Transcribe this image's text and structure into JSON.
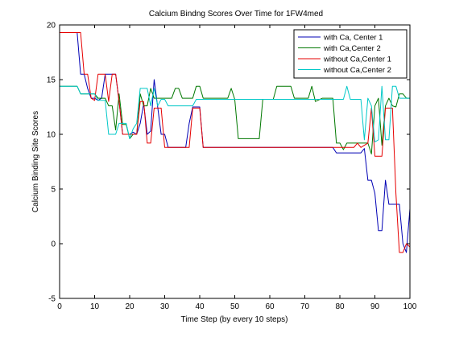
{
  "chart_data": {
    "type": "line",
    "title": "Calcium Bindng Scores Over Time for 1FW4med",
    "xlabel": "Time Step (by every 10 steps)",
    "ylabel": "Calcium Binding Site Scores",
    "xlim": [
      0,
      100
    ],
    "ylim": [
      -5,
      20
    ],
    "x_ticks": [
      "0",
      "10",
      "20",
      "30",
      "40",
      "50",
      "60",
      "70",
      "80",
      "90",
      "100"
    ],
    "y_ticks": [
      "-5",
      "0",
      "5",
      "10",
      "15",
      "20"
    ],
    "grid": false,
    "legend_position": "top-right",
    "series": [
      {
        "name": "with Ca, Center 1",
        "color": "#0000b4",
        "points": [
          [
            0,
            19.3
          ],
          [
            5,
            19.3
          ],
          [
            6,
            15.5
          ],
          [
            7,
            15.5
          ],
          [
            8,
            14.2
          ],
          [
            9,
            13.3
          ],
          [
            10,
            13.3
          ],
          [
            11,
            13.1
          ],
          [
            12,
            13.3
          ],
          [
            13,
            15.5
          ],
          [
            14,
            15.5
          ],
          [
            15,
            15.5
          ],
          [
            16,
            15.5
          ],
          [
            17,
            13.0
          ],
          [
            18,
            10.0
          ],
          [
            19,
            10.0
          ],
          [
            20,
            10.0
          ],
          [
            21,
            10.2
          ],
          [
            22,
            10.0
          ],
          [
            23,
            11.0
          ],
          [
            24,
            12.8
          ],
          [
            25,
            10.0
          ],
          [
            26,
            10.3
          ],
          [
            27,
            15.0
          ],
          [
            28,
            12.5
          ],
          [
            29,
            10.0
          ],
          [
            30,
            10.0
          ],
          [
            31,
            8.8
          ],
          [
            35,
            8.8
          ],
          [
            36,
            8.8
          ],
          [
            37,
            11.0
          ],
          [
            38,
            12.5
          ],
          [
            39,
            12.5
          ],
          [
            40,
            12.5
          ],
          [
            41,
            8.8
          ],
          [
            78,
            8.8
          ],
          [
            79,
            8.3
          ],
          [
            86,
            8.3
          ],
          [
            87,
            8.7
          ],
          [
            88,
            5.8
          ],
          [
            89,
            5.8
          ],
          [
            90,
            4.6
          ],
          [
            91,
            1.2
          ],
          [
            92,
            1.2
          ],
          [
            93,
            5.8
          ],
          [
            94,
            3.6
          ],
          [
            95,
            3.6
          ],
          [
            97,
            3.6
          ],
          [
            98,
            0.0
          ],
          [
            99,
            -0.8
          ],
          [
            100,
            3.2
          ]
        ]
      },
      {
        "name": "with Ca,Center 2",
        "color": "#007800",
        "points": [
          [
            0,
            14.4
          ],
          [
            5,
            14.4
          ],
          [
            6,
            13.7
          ],
          [
            10,
            13.7
          ],
          [
            11,
            13.3
          ],
          [
            13,
            13.3
          ],
          [
            14,
            12.6
          ],
          [
            15,
            12.6
          ],
          [
            16,
            10.4
          ],
          [
            17,
            13.7
          ],
          [
            18,
            10.9
          ],
          [
            19,
            10.9
          ],
          [
            20,
            9.6
          ],
          [
            21,
            10.0
          ],
          [
            22,
            10.0
          ],
          [
            23,
            13.7
          ],
          [
            24,
            12.6
          ],
          [
            25,
            12.6
          ],
          [
            26,
            14.2
          ],
          [
            27,
            13.3
          ],
          [
            32,
            13.3
          ],
          [
            33,
            14.2
          ],
          [
            34,
            14.2
          ],
          [
            35,
            13.3
          ],
          [
            38,
            13.3
          ],
          [
            39,
            14.4
          ],
          [
            40,
            14.4
          ],
          [
            41,
            13.3
          ],
          [
            48,
            13.3
          ],
          [
            49,
            14.2
          ],
          [
            50,
            13.2
          ],
          [
            51,
            9.6
          ],
          [
            57,
            9.6
          ],
          [
            58,
            13.2
          ],
          [
            61,
            13.2
          ],
          [
            62,
            14.4
          ],
          [
            66,
            14.4
          ],
          [
            67,
            13.3
          ],
          [
            71,
            13.3
          ],
          [
            72,
            14.4
          ],
          [
            73,
            13.0
          ],
          [
            75,
            13.3
          ],
          [
            78,
            13.3
          ],
          [
            79,
            9.2
          ],
          [
            80,
            9.2
          ],
          [
            81,
            8.6
          ],
          [
            82,
            9.2
          ],
          [
            88,
            9.2
          ],
          [
            89,
            8.2
          ],
          [
            90,
            12.6
          ],
          [
            91,
            13.3
          ],
          [
            92,
            9.0
          ],
          [
            93,
            12.6
          ],
          [
            94,
            13.3
          ],
          [
            95,
            12.6
          ],
          [
            96,
            12.5
          ],
          [
            97,
            13.7
          ],
          [
            98,
            13.7
          ],
          [
            99,
            13.3
          ],
          [
            100,
            13.3
          ]
        ]
      },
      {
        "name": "without Ca,Center 1",
        "color": "#e60000",
        "points": [
          [
            0,
            19.3
          ],
          [
            6,
            19.3
          ],
          [
            7,
            15.5
          ],
          [
            8,
            15.5
          ],
          [
            9,
            13.3
          ],
          [
            10,
            13.1
          ],
          [
            11,
            15.5
          ],
          [
            12,
            15.5
          ],
          [
            13,
            15.5
          ],
          [
            14,
            13.0
          ],
          [
            15,
            15.5
          ],
          [
            16,
            15.5
          ],
          [
            17,
            13.0
          ],
          [
            18,
            10.0
          ],
          [
            22,
            10.0
          ],
          [
            23,
            13.0
          ],
          [
            24,
            13.0
          ],
          [
            25,
            9.2
          ],
          [
            26,
            9.2
          ],
          [
            27,
            12.4
          ],
          [
            28,
            12.4
          ],
          [
            29,
            12.4
          ],
          [
            30,
            8.8
          ],
          [
            37,
            8.8
          ],
          [
            38,
            12.4
          ],
          [
            40,
            12.4
          ],
          [
            41,
            8.8
          ],
          [
            84,
            8.8
          ],
          [
            85,
            9.2
          ],
          [
            86,
            8.8
          ],
          [
            88,
            9.2
          ],
          [
            89,
            12.4
          ],
          [
            90,
            8.0
          ],
          [
            91,
            8.0
          ],
          [
            92,
            8.0
          ],
          [
            93,
            12.4
          ],
          [
            94,
            12.4
          ],
          [
            95,
            12.4
          ],
          [
            96,
            4.6
          ],
          [
            97,
            -0.8
          ],
          [
            98,
            -0.8
          ],
          [
            99,
            0.0
          ],
          [
            100,
            -0.3
          ]
        ]
      },
      {
        "name": "without Ca,Center 2",
        "color": "#00c8c8",
        "points": [
          [
            0,
            14.4
          ],
          [
            5,
            14.4
          ],
          [
            6,
            13.7
          ],
          [
            10,
            13.7
          ],
          [
            11,
            13.1
          ],
          [
            13,
            13.1
          ],
          [
            14,
            10.0
          ],
          [
            16,
            10.0
          ],
          [
            17,
            11.0
          ],
          [
            18,
            11.0
          ],
          [
            19,
            11.0
          ],
          [
            20,
            9.6
          ],
          [
            21,
            10.5
          ],
          [
            22,
            11.0
          ],
          [
            23,
            14.2
          ],
          [
            24,
            14.2
          ],
          [
            25,
            14.2
          ],
          [
            26,
            12.6
          ],
          [
            27,
            14.2
          ],
          [
            28,
            12.6
          ],
          [
            29,
            13.2
          ],
          [
            30,
            13.2
          ],
          [
            31,
            12.6
          ],
          [
            38,
            12.6
          ],
          [
            39,
            13.2
          ],
          [
            78,
            13.2
          ],
          [
            79,
            13.2
          ],
          [
            81,
            13.2
          ],
          [
            82,
            14.4
          ],
          [
            83,
            13.2
          ],
          [
            86,
            13.2
          ],
          [
            87,
            9.5
          ],
          [
            88,
            13.3
          ],
          [
            89,
            12.6
          ],
          [
            90,
            9.3
          ],
          [
            91,
            9.5
          ],
          [
            92,
            14.4
          ],
          [
            93,
            9.5
          ],
          [
            94,
            9.5
          ],
          [
            95,
            14.4
          ],
          [
            96,
            14.4
          ],
          [
            97,
            13.3
          ],
          [
            98,
            13.3
          ],
          [
            99,
            13.3
          ],
          [
            100,
            13.3
          ]
        ]
      }
    ]
  }
}
